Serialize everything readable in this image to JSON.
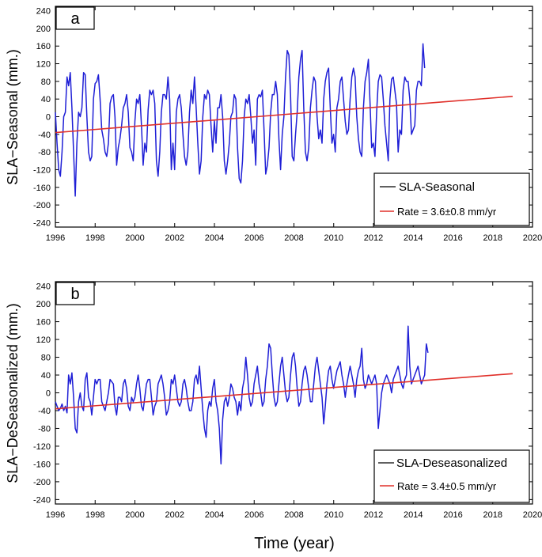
{
  "figure": {
    "xlabel": "Time (year)"
  },
  "chart_data": [
    {
      "type": "line",
      "panel_label": "a",
      "ylabel": "SLA−Seasonal (mm.)",
      "xlim": [
        1996,
        2020
      ],
      "ylim": [
        -250,
        250
      ],
      "xticks": [
        1996,
        1998,
        2000,
        2002,
        2004,
        2006,
        2008,
        2010,
        2012,
        2014,
        2016,
        2018,
        2020
      ],
      "yticks": [
        -240,
        -200,
        -160,
        -120,
        -80,
        -40,
        0,
        40,
        80,
        120,
        160,
        200,
        240
      ],
      "grid": false,
      "legend_position": "bottom-right",
      "series": [
        {
          "name": "SLA-Seasonal",
          "color": "#1f1fd6",
          "x_start": 1996.0,
          "x_step": 0.0833,
          "values": [
            10,
            -60,
            -120,
            -135,
            -80,
            0,
            10,
            90,
            70,
            100,
            20,
            -80,
            -180,
            -60,
            10,
            0,
            20,
            100,
            95,
            0,
            -80,
            -100,
            -90,
            40,
            75,
            80,
            95,
            40,
            -30,
            -50,
            -80,
            -90,
            -60,
            30,
            45,
            50,
            0,
            -110,
            -70,
            -50,
            -20,
            20,
            30,
            50,
            10,
            -70,
            -80,
            -100,
            -10,
            40,
            30,
            50,
            -20,
            -110,
            -60,
            -80,
            15,
            60,
            50,
            60,
            30,
            -100,
            -135,
            -80,
            10,
            50,
            50,
            40,
            90,
            40,
            -120,
            -60,
            -120,
            10,
            40,
            50,
            20,
            -40,
            -90,
            -110,
            -80,
            10,
            60,
            30,
            90,
            20,
            -60,
            -130,
            -100,
            0,
            50,
            40,
            60,
            50,
            -20,
            -80,
            -10,
            -60,
            20,
            20,
            50,
            0,
            -100,
            -130,
            -100,
            -60,
            0,
            10,
            50,
            40,
            -70,
            -140,
            -150,
            -100,
            0,
            40,
            30,
            50,
            0,
            -60,
            -30,
            -110,
            40,
            50,
            45,
            60,
            -30,
            -130,
            -110,
            -70,
            10,
            50,
            50,
            80,
            50,
            -50,
            -120,
            -40,
            0,
            90,
            150,
            140,
            50,
            -90,
            -100,
            -40,
            10,
            90,
            130,
            150,
            20,
            -80,
            -100,
            -70,
            20,
            60,
            90,
            80,
            0,
            -50,
            -30,
            -60,
            40,
            80,
            100,
            110,
            20,
            -60,
            -40,
            -80,
            20,
            40,
            80,
            90,
            40,
            -10,
            -40,
            -30,
            40,
            90,
            110,
            90,
            0,
            -50,
            -80,
            -90,
            20,
            80,
            100,
            130,
            30,
            -70,
            -60,
            -90,
            10,
            80,
            95,
            90,
            40,
            -20,
            -60,
            -100,
            40,
            85,
            90,
            60,
            30,
            -80,
            -30,
            -40,
            60,
            90,
            80,
            80,
            40,
            -40,
            -30,
            -20,
            60,
            80,
            80,
            70,
            165,
            110
          ]
        },
        {
          "name": "Rate = 3.6±0.8 mm/yr",
          "color": "#e0302a",
          "x": [
            1996.0,
            2019.0
          ],
          "values": [
            -36,
            46
          ]
        }
      ]
    },
    {
      "type": "line",
      "panel_label": "b",
      "ylabel": "SLA−DeSeasonalized (mm.)",
      "xlim": [
        1996,
        2020
      ],
      "ylim": [
        -250,
        250
      ],
      "xticks": [
        1996,
        1998,
        2000,
        2002,
        2004,
        2006,
        2008,
        2010,
        2012,
        2014,
        2016,
        2018,
        2020
      ],
      "yticks": [
        -240,
        -200,
        -160,
        -120,
        -80,
        -40,
        0,
        40,
        80,
        120,
        160,
        200,
        240
      ],
      "grid": false,
      "legend_position": "bottom-right",
      "series": [
        {
          "name": "SLA-Deseasonalized",
          "color": "#1f1fd6",
          "x_start": 1996.0,
          "x_step": 0.0833,
          "values": [
            -20,
            -30,
            -40,
            -35,
            -25,
            -40,
            -30,
            -45,
            40,
            20,
            45,
            -10,
            -80,
            -90,
            -20,
            0,
            -30,
            -40,
            30,
            45,
            -10,
            -20,
            -50,
            -10,
            30,
            20,
            30,
            30,
            -20,
            -30,
            -40,
            -20,
            0,
            30,
            25,
            20,
            -30,
            -50,
            -10,
            -10,
            -20,
            20,
            30,
            10,
            -30,
            -40,
            -10,
            -20,
            -10,
            20,
            40,
            10,
            -30,
            -40,
            -10,
            20,
            30,
            30,
            -10,
            -50,
            -30,
            -20,
            20,
            30,
            40,
            20,
            -10,
            -50,
            -40,
            -20,
            30,
            20,
            40,
            10,
            -20,
            -30,
            -20,
            20,
            30,
            10,
            -20,
            -40,
            -40,
            -20,
            30,
            40,
            20,
            60,
            10,
            -40,
            -80,
            -100,
            -40,
            -20,
            -30,
            10,
            30,
            -20,
            -40,
            -80,
            -160,
            -60,
            -20,
            -10,
            -30,
            -10,
            20,
            10,
            -10,
            -20,
            -50,
            -20,
            -40,
            10,
            30,
            80,
            40,
            -10,
            -30,
            -20,
            20,
            40,
            60,
            20,
            0,
            -30,
            -20,
            30,
            60,
            110,
            100,
            40,
            -10,
            -30,
            -20,
            20,
            60,
            80,
            40,
            0,
            -20,
            -10,
            40,
            80,
            90,
            60,
            10,
            -30,
            -20,
            20,
            50,
            60,
            40,
            10,
            -20,
            -20,
            20,
            60,
            80,
            50,
            20,
            -10,
            -70,
            -30,
            20,
            50,
            60,
            30,
            10,
            30,
            50,
            60,
            70,
            40,
            20,
            -10,
            20,
            40,
            60,
            40,
            20,
            -10,
            30,
            50,
            60,
            100,
            30,
            10,
            20,
            40,
            30,
            20,
            30,
            40,
            20,
            -80,
            -40,
            0,
            20,
            30,
            40,
            30,
            20,
            0,
            30,
            40,
            50,
            60,
            40,
            20,
            10,
            30,
            40,
            150,
            60,
            20,
            30,
            40,
            50,
            60,
            40,
            20,
            30,
            40,
            110,
            90
          ]
        },
        {
          "name": "Rate = 3.4±0.5 mm/yr",
          "color": "#e0302a",
          "x": [
            1996.0,
            2019.0
          ],
          "values": [
            -36,
            43
          ]
        }
      ]
    }
  ]
}
